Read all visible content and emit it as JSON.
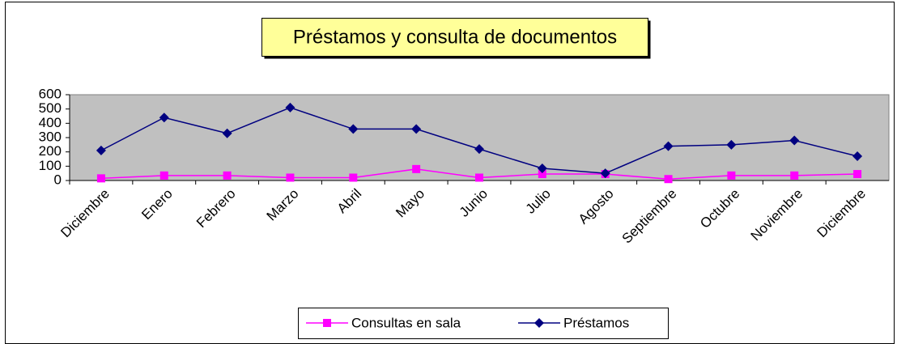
{
  "chart_data": {
    "type": "line",
    "title": "Préstamos y consulta de documentos",
    "categories": [
      "Diciembre",
      "Enero",
      "Febrero",
      "Marzo",
      "Abril",
      "Mayo",
      "Junio",
      "Julio",
      "Agosto",
      "Septiembre",
      "Octubre",
      "Noviembre",
      "Diciembre"
    ],
    "series": [
      {
        "name": "Consultas en sala",
        "color": "#ff00ff",
        "marker": "square",
        "values": [
          15,
          35,
          35,
          20,
          20,
          80,
          20,
          45,
          45,
          10,
          35,
          35,
          45
        ]
      },
      {
        "name": "Préstamos",
        "color": "#000080",
        "marker": "diamond",
        "values": [
          210,
          440,
          330,
          510,
          360,
          360,
          220,
          85,
          50,
          240,
          250,
          280,
          170
        ]
      }
    ],
    "ylim": [
      0,
      600
    ],
    "yticks": [
      0,
      100,
      200,
      300,
      400,
      500,
      600
    ],
    "grid": false,
    "legend": "bottom"
  }
}
